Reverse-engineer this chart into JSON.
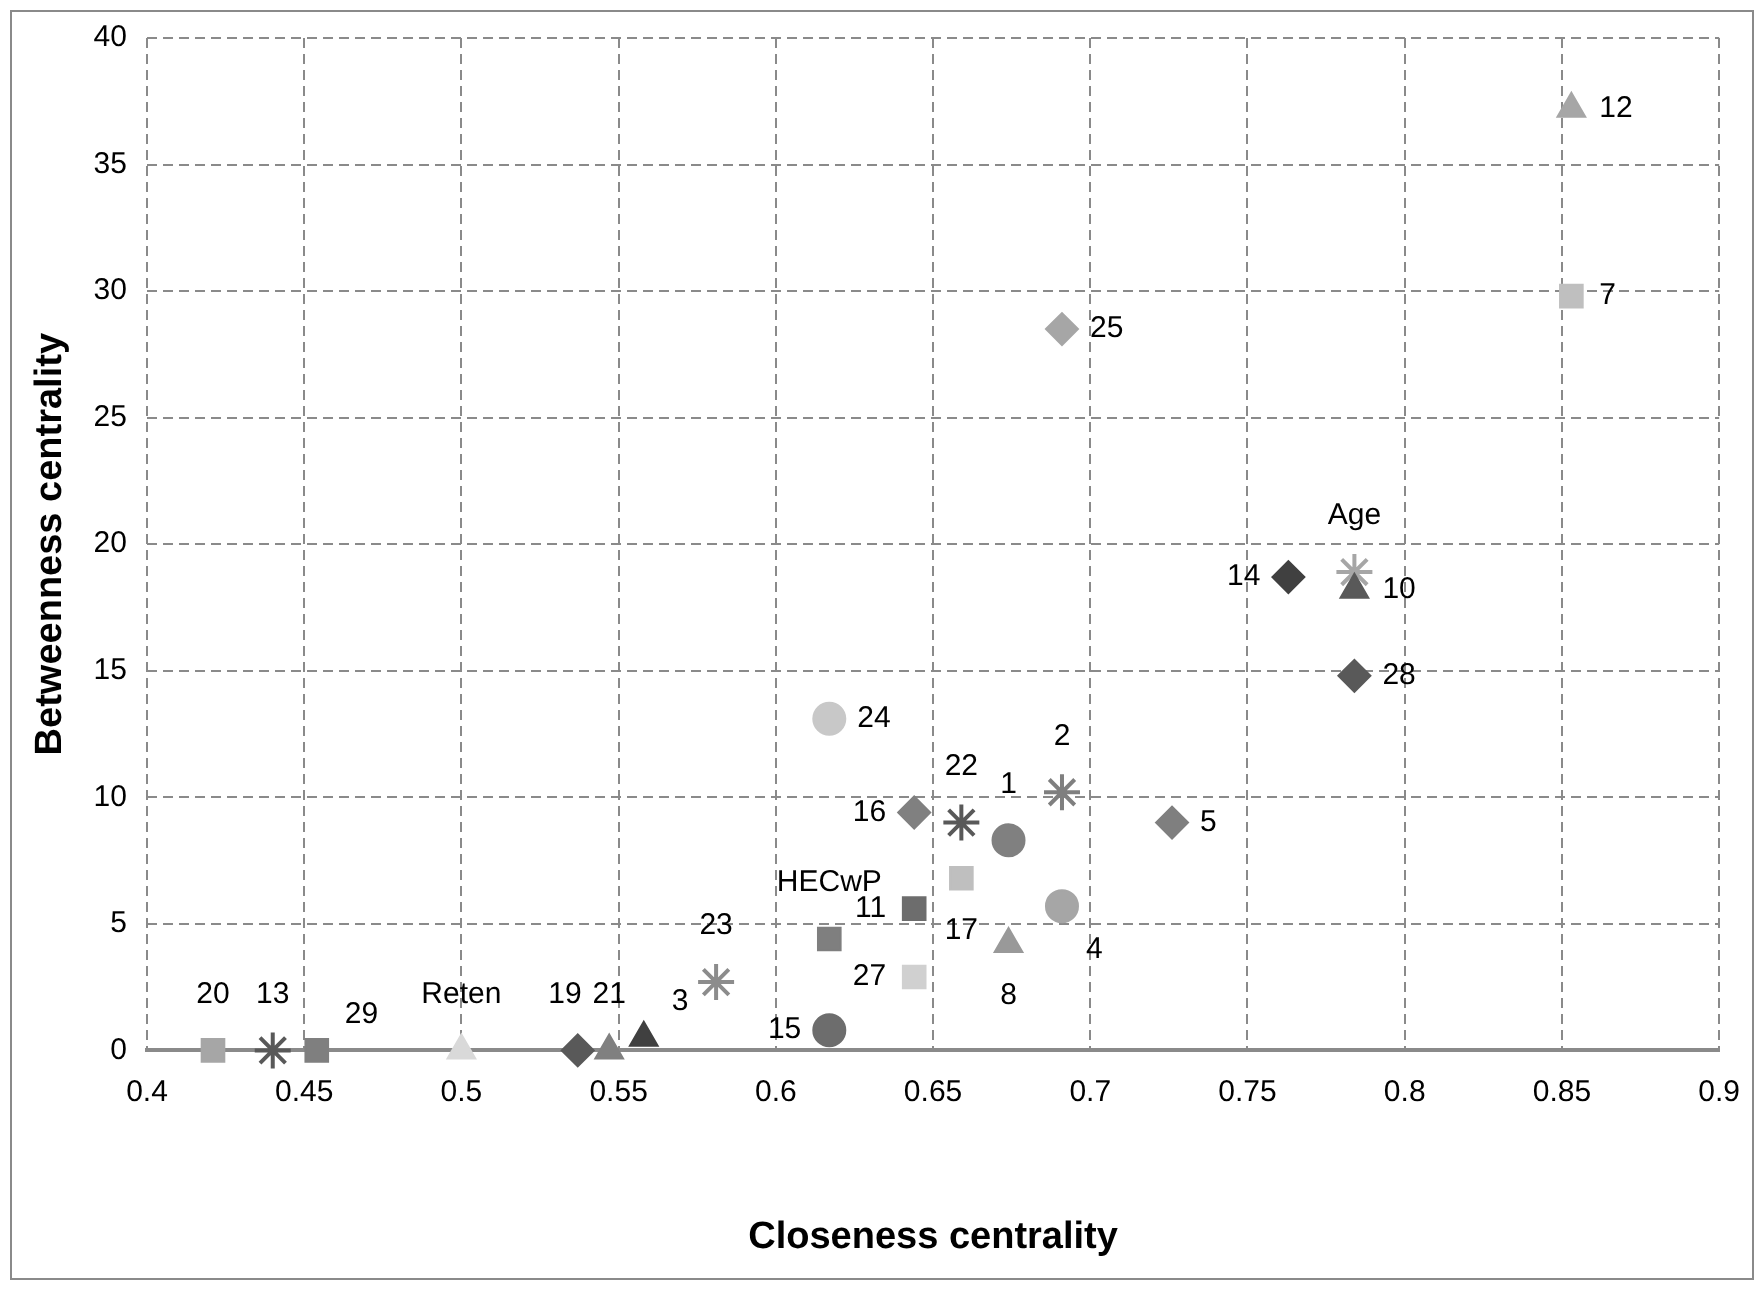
{
  "chart_data": {
    "type": "scatter",
    "xlabel": "Closeness centrality",
    "ylabel": "Betweenness centrality",
    "xlim": [
      0.4,
      0.9
    ],
    "xticks": [
      0.4,
      0.45,
      0.5,
      0.55,
      0.6,
      0.65,
      0.7,
      0.75,
      0.8,
      0.85,
      0.9
    ],
    "ylim": [
      0,
      40
    ],
    "yticks": [
      0,
      5,
      10,
      15,
      20,
      25,
      30,
      35,
      40
    ],
    "grid": true,
    "legend": false,
    "series": [
      {
        "marker": "square",
        "x": [
          0.421,
          0.454,
          0.617,
          0.644,
          0.659,
          0.853,
          0.644
        ],
        "values": [
          0,
          0,
          4.4,
          5.6,
          6.8,
          29.8,
          2.9
        ],
        "colors": [
          "#a6a6a6",
          "#7f7f7f",
          "#7f7f7f",
          "#6d6d6d",
          "#bfbfbf",
          "#bfbfbf",
          "#d0d0d0"
        ]
      },
      {
        "marker": "circle",
        "x": [
          0.617,
          0.617,
          0.691,
          0.674
        ],
        "values": [
          13.1,
          0.8,
          5.7,
          8.3
        ],
        "colors": [
          "#c8c8c8",
          "#6d6d6d",
          "#a6a6a6",
          "#808080"
        ]
      },
      {
        "marker": "triangle",
        "x": [
          0.5,
          0.547,
          0.558,
          0.674,
          0.784,
          0.853
        ],
        "values": [
          0,
          0,
          0.5,
          4.2,
          18.2,
          37.2
        ],
        "colors": [
          "#d9d9d9",
          "#808080",
          "#404040",
          "#999999",
          "#595959",
          "#a6a6a6"
        ]
      },
      {
        "marker": "diamond",
        "x": [
          0.537,
          0.644,
          0.726,
          0.691,
          0.763,
          0.784
        ],
        "values": [
          0,
          9.4,
          9.0,
          28.5,
          18.7,
          14.8
        ],
        "colors": [
          "#595959",
          "#808080",
          "#7f7f7f",
          "#a6a6a6",
          "#404040",
          "#595959"
        ]
      },
      {
        "marker": "cross",
        "x": [
          0.44,
          0.581,
          0.659,
          0.691,
          0.784
        ],
        "values": [
          0,
          2.7,
          9.0,
          10.2,
          18.9
        ],
        "colors": [
          "#595959",
          "#8c8c8c",
          "#595959",
          "#7f7f7f",
          "#a6a6a6"
        ]
      }
    ],
    "annotations": [
      {
        "text": "20",
        "x": 0.421,
        "y": 0
      },
      {
        "text": "13",
        "x": 0.44,
        "y": 0
      },
      {
        "text": "29",
        "x": 0.454,
        "y": 0
      },
      {
        "text": "Reten",
        "x": 0.5,
        "y": 0
      },
      {
        "text": "19",
        "x": 0.537,
        "y": 0
      },
      {
        "text": "21",
        "x": 0.547,
        "y": 0
      },
      {
        "text": "3",
        "x": 0.558,
        "y": 0.5
      },
      {
        "text": "23",
        "x": 0.581,
        "y": 2.7
      },
      {
        "text": "HECwP",
        "x": 0.617,
        "y": 4.4
      },
      {
        "text": "15",
        "x": 0.617,
        "y": 0.8
      },
      {
        "text": "11",
        "x": 0.644,
        "y": 5.6
      },
      {
        "text": "27",
        "x": 0.644,
        "y": 2.9
      },
      {
        "text": "16",
        "x": 0.644,
        "y": 9.4
      },
      {
        "text": "22",
        "x": 0.659,
        "y": 9.0
      },
      {
        "text": "17",
        "x": 0.659,
        "y": 6.8
      },
      {
        "text": "1",
        "x": 0.674,
        "y": 8.3
      },
      {
        "text": "8",
        "x": 0.674,
        "y": 4.2
      },
      {
        "text": "2",
        "x": 0.691,
        "y": 10.2
      },
      {
        "text": "4",
        "x": 0.691,
        "y": 5.7
      },
      {
        "text": "5",
        "x": 0.726,
        "y": 9.0
      },
      {
        "text": "24",
        "x": 0.617,
        "y": 13.1
      },
      {
        "text": "25",
        "x": 0.691,
        "y": 28.5
      },
      {
        "text": "14",
        "x": 0.763,
        "y": 18.7
      },
      {
        "text": "10",
        "x": 0.784,
        "y": 18.2
      },
      {
        "text": "Age",
        "x": 0.784,
        "y": 18.9
      },
      {
        "text": "28",
        "x": 0.784,
        "y": 14.8
      },
      {
        "text": "12",
        "x": 0.853,
        "y": 37.2
      },
      {
        "text": "7",
        "x": 0.853,
        "y": 29.8
      }
    ]
  }
}
